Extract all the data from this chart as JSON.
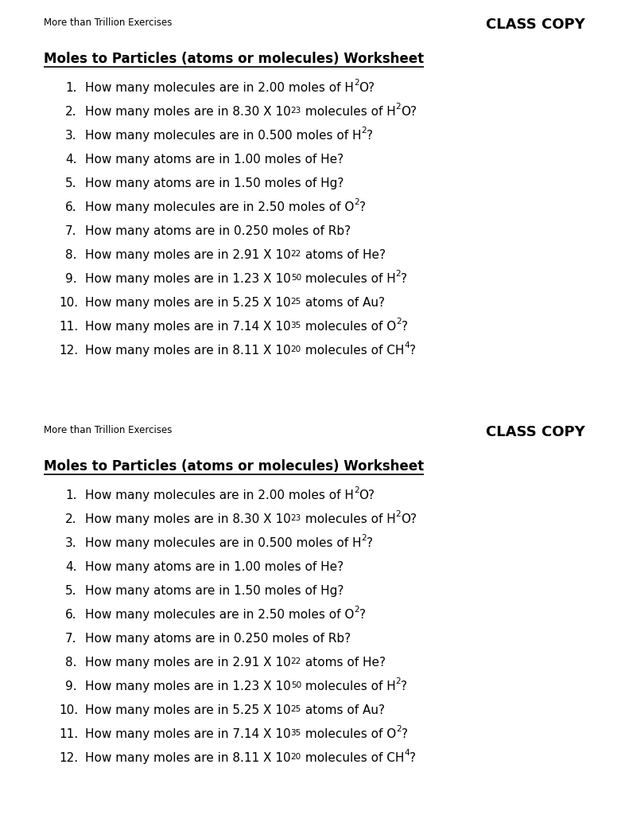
{
  "header_left": "More than Trillion Exercises",
  "header_right": "CLASS COPY",
  "title": "Moles to Particles (atoms or molecules) Worksheet",
  "bg_color": "#ffffff",
  "text_color": "#000000",
  "header_fontsize": 8.5,
  "title_fontsize": 12,
  "question_fontsize": 11,
  "class_copy_fontsize": 13,
  "question_numbers": [
    "1.",
    "2.",
    "3.",
    "4.",
    "5.",
    "6.",
    "7.",
    "8.",
    "9.",
    "10.",
    "11.",
    "12."
  ]
}
